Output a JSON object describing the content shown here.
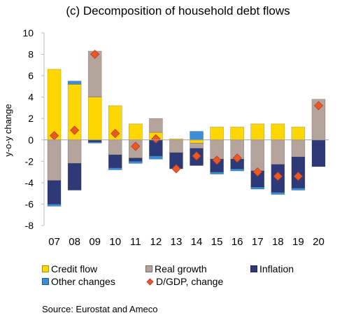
{
  "title": "(c) Decomposition of household debt flows",
  "source": "Source: Eurostat and Ameco",
  "colors": {
    "credit_flow": "#FFD700",
    "real_growth": "#B5A49C",
    "inflation": "#2E3A78",
    "other_changes": "#3C8DD9",
    "dgdp": "#E85A20"
  },
  "legend": {
    "credit_flow": "Credit flow",
    "real_growth": "Real growth",
    "inflation": "Inflation",
    "other_changes": "Other changes",
    "dgdp": "D/GDP, change"
  },
  "chart_data": {
    "type": "bar",
    "stacked": true,
    "title": "(c) Decomposition of household debt flows",
    "ylabel": "y-o-y change",
    "xlabel": "",
    "ylim": [
      -8,
      10
    ],
    "yticks": [
      -8,
      -6,
      -4,
      -2,
      0,
      2,
      4,
      6,
      8,
      10
    ],
    "categories": [
      "07",
      "08",
      "09",
      "10",
      "11",
      "12",
      "13",
      "14",
      "15",
      "16",
      "17",
      "18",
      "19",
      "20"
    ],
    "series": [
      {
        "name": "Credit flow",
        "key": "credit_flow",
        "values": [
          6.6,
          5.2,
          4.0,
          3.2,
          1.5,
          0.7,
          0.1,
          -0.3,
          1.2,
          1.2,
          1.5,
          1.5,
          1.2,
          0.0
        ]
      },
      {
        "name": "Real growth",
        "key": "real_growth",
        "values": [
          -3.8,
          -2.2,
          4.3,
          -1.4,
          -1.7,
          1.3,
          -1.2,
          -0.5,
          -1.8,
          -1.8,
          -2.9,
          -2.3,
          -1.6,
          3.8
        ]
      },
      {
        "name": "Inflation",
        "key": "inflation",
        "values": [
          -2.2,
          -2.5,
          -0.2,
          -1.2,
          -0.3,
          -1.5,
          -1.5,
          -1.6,
          -1.2,
          -0.9,
          -1.5,
          -2.6,
          -2.9,
          -2.5
        ]
      },
      {
        "name": "Other changes",
        "key": "other_changes",
        "values": [
          -0.2,
          0.3,
          -0.1,
          -0.2,
          -0.2,
          -0.3,
          0.0,
          0.8,
          -0.2,
          -0.2,
          -0.2,
          -0.2,
          -0.2,
          0.0
        ]
      }
    ],
    "line_series": {
      "name": "D/GDP, change",
      "key": "dgdp",
      "marker": "diamond",
      "values": [
        0.4,
        0.9,
        8.0,
        0.6,
        -0.6,
        0.1,
        -2.7,
        -1.5,
        -1.9,
        -1.7,
        -3.0,
        -3.4,
        -3.4,
        3.2
      ]
    },
    "grid": false,
    "legend_position": "bottom"
  }
}
